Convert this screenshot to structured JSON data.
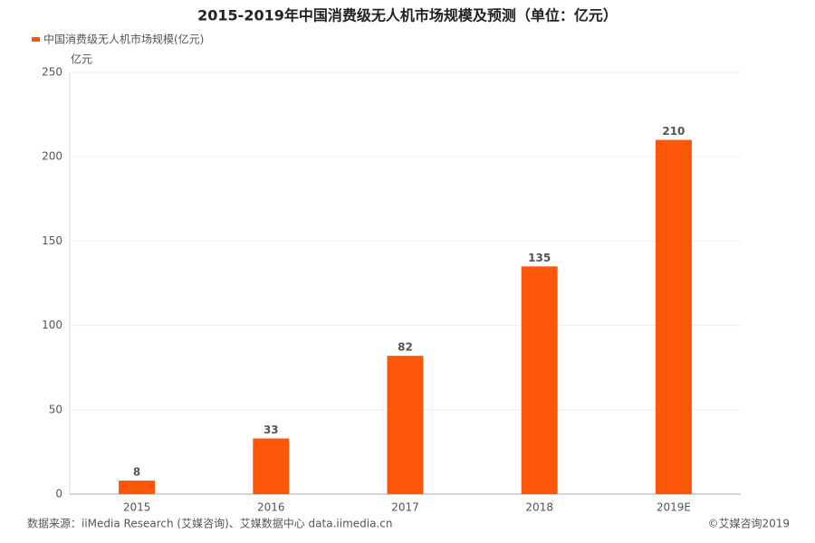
{
  "chart_data": {
    "type": "bar",
    "title": "2015-2019年中国消费级无人机市场规模及预测（单位：亿元）",
    "ylabel": "亿元",
    "categories": [
      "2015",
      "2016",
      "2017",
      "2018",
      "2019E"
    ],
    "series": [
      {
        "name": "中国消费级无人机市场规模(亿元)",
        "color": "#fc5608",
        "values": [
          8,
          33,
          82,
          135,
          210
        ]
      }
    ],
    "ylim": [
      0,
      250
    ],
    "yticks": [
      0,
      50,
      100,
      150,
      200,
      250
    ],
    "grid": true,
    "source": "数据来源：iiMedia Research (艾媒咨询)、艾媒数据中心 data.iimedia.cn",
    "copyright": "©艾媒咨询2019"
  }
}
